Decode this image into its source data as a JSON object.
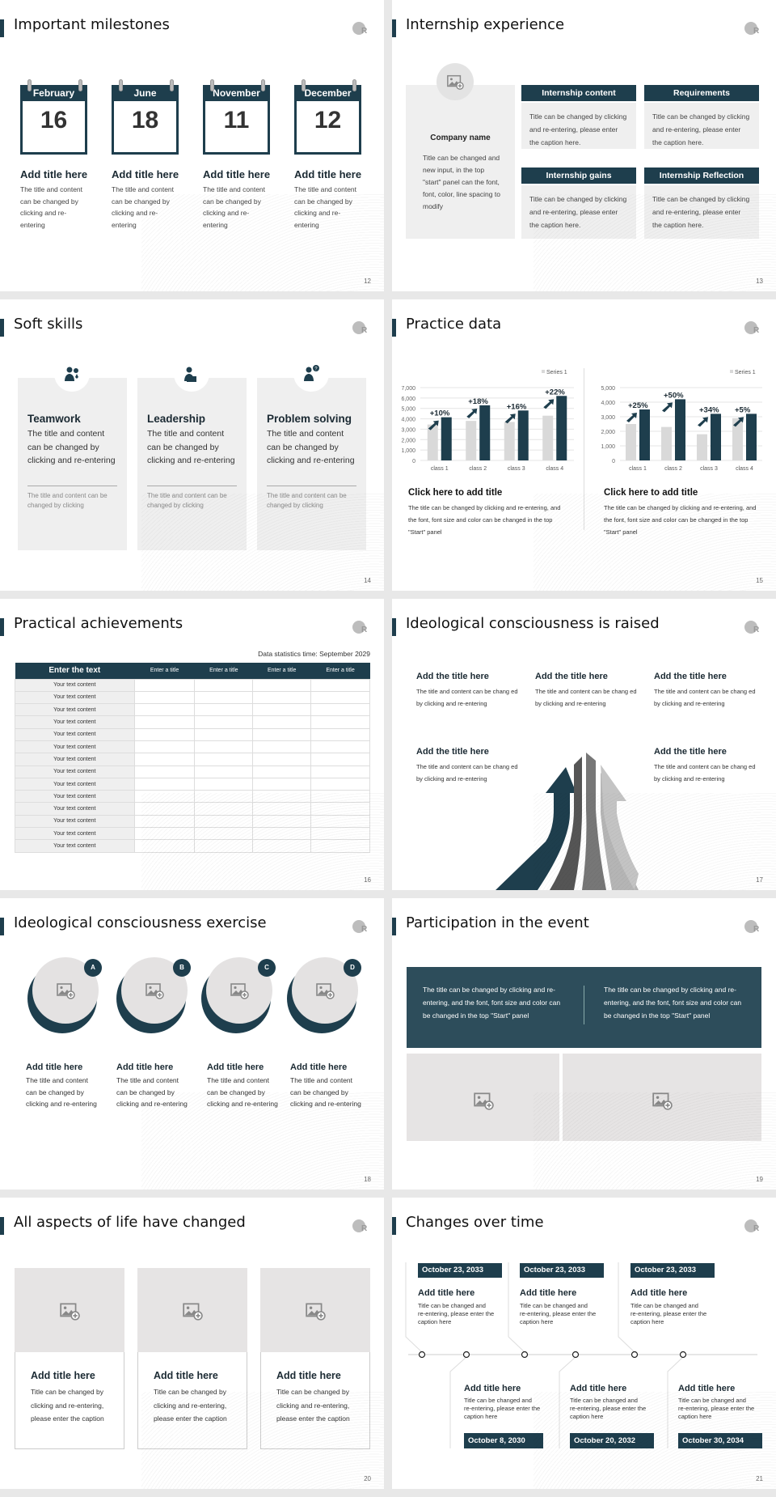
{
  "accent": "#1e3e4d",
  "slides": [
    {
      "title": "Important milestones",
      "page": "12",
      "calendars": [
        {
          "month": "February",
          "day": "16",
          "title": "Add title here",
          "body": "The title and content can be changed by clicking and re-entering"
        },
        {
          "month": "June",
          "day": "18",
          "title": "Add title here",
          "body": "The title and content can be changed by clicking and re-entering"
        },
        {
          "month": "November",
          "day": "11",
          "title": "Add title here",
          "body": "The title and content can be changed by clicking and re-entering"
        },
        {
          "month": "December",
          "day": "12",
          "title": "Add title here",
          "body": "The title and content can be changed by clicking and re-entering"
        }
      ]
    },
    {
      "title": "Internship experience",
      "page": "13",
      "company": {
        "name": "Company name",
        "body": "Title can be changed and new input, in the top \"start\" panel can the font, font, color, line spacing to modify"
      },
      "boxes": [
        {
          "header": "Internship content",
          "body": "Title can be changed by clicking and re-entering, please enter the caption here."
        },
        {
          "header": "Requirements",
          "body": "Title can be changed by clicking and re-entering, please enter the caption here."
        },
        {
          "header": "Internship gains",
          "body": "Title can be changed by clicking and re-entering, please enter the caption here."
        },
        {
          "header": "Internship Reflection",
          "body": "Title can be changed by clicking and re-entering, please enter the caption here."
        }
      ]
    },
    {
      "title": "Soft skills",
      "page": "14",
      "cards": [
        {
          "icon": "teamwork-icon",
          "title": "Teamwork",
          "body": "The title and content can be changed by clicking and re-entering",
          "note": "The title and content can be changed by clicking"
        },
        {
          "icon": "leadership-podium-icon",
          "title": "Leadership",
          "body": "The title and content can be changed by clicking and re-entering",
          "note": "The title and content can be changed by clicking"
        },
        {
          "icon": "question-person-icon",
          "title": "Problem solving",
          "body": "The title and content can be changed by clicking and re-entering",
          "note": "The title and content can be changed by clicking"
        }
      ]
    },
    {
      "title": "Practice data",
      "page": "15",
      "captions": [
        {
          "title": "Click here to add title",
          "body": "The title can be changed by clicking and re-entering, and the font, font size and color can be changed in the top \"Start\" panel"
        },
        {
          "title": "Click here to add title",
          "body": "The title can be changed by clicking and re-entering, and the font, font size and color can be changed in the top \"Start\" panel"
        }
      ]
    },
    {
      "title": "Practical achievements",
      "page": "16",
      "note": "Data statistics time: September 2029",
      "header": [
        "Enter the text",
        "Enter a title",
        "Enter a title",
        "Enter a title",
        "Enter a title"
      ],
      "rows": [
        "Your text content",
        "Your text content",
        "Your text content",
        "Your text content",
        "Your text content",
        "Your text content",
        "Your text content",
        "Your text content",
        "Your text content",
        "Your text content",
        "Your text content",
        "Your text content",
        "Your text content",
        "Your text content"
      ]
    },
    {
      "title": "Ideological consciousness is raised",
      "page": "17",
      "items": [
        {
          "title": "Add the title here",
          "body": "The title and content can be chang ed by clicking and re-entering"
        },
        {
          "title": "Add the title here",
          "body": "The title and content can be chang ed by clicking and re-entering"
        },
        {
          "title": "Add the title here",
          "body": "The title and content can be chang ed by clicking and re-entering"
        },
        {
          "title": "Add the title here",
          "body": "The title and content can be chang ed by clicking and re-entering"
        },
        {
          "title": "Add the title here",
          "body": "The title and content can be chang ed by clicking and re-entering"
        }
      ]
    },
    {
      "title": "Ideological consciousness exercise",
      "page": "18",
      "items": [
        {
          "badge": "A",
          "title": "Add title here",
          "body": "The title and content can be changed by clicking and re-entering"
        },
        {
          "badge": "B",
          "title": "Add title here",
          "body": "The title and content can be changed by clicking and re-entering"
        },
        {
          "badge": "C",
          "title": "Add title here",
          "body": "The title and content can be changed by clicking and re-entering"
        },
        {
          "badge": "D",
          "title": "Add title here",
          "body": "The title and content can be changed by clicking and re-entering"
        }
      ]
    },
    {
      "title": "Participation in the event",
      "page": "19",
      "texts": [
        "The title can be changed by clicking and re-entering, and the font, font size and color can be changed in the top \"Start\" panel",
        "The title can be changed by clicking and re-entering, and the font, font size and color can be changed in the top \"Start\" panel"
      ]
    },
    {
      "title": "All aspects of life have changed",
      "page": "20",
      "cards": [
        {
          "title": "Add title here",
          "body": "Title can be changed by clicking and re-entering, please enter the caption"
        },
        {
          "title": "Add title here",
          "body": "Title can be changed by clicking and re-entering, please enter the caption"
        },
        {
          "title": "Add title here",
          "body": "Title can be changed by clicking and re-entering, please enter the caption"
        }
      ]
    },
    {
      "title": "Changes over time",
      "page": "21",
      "top": [
        {
          "date": "October 23, 2033",
          "title": "Add title here",
          "body": "Title can be changed and re-entering, please enter the caption here"
        },
        {
          "date": "October 23, 2033",
          "title": "Add title here",
          "body": "Title can be changed and re-entering, please enter the caption here"
        },
        {
          "date": "October 23, 2033",
          "title": "Add title here",
          "body": "Title can be changed and re-entering, please enter the caption here"
        }
      ],
      "bottom": [
        {
          "date": "October 8, 2030",
          "title": "Add title here",
          "body": "Title can be changed and re-entering, please enter the caption here"
        },
        {
          "date": "October 20, 2032",
          "title": "Add title here",
          "body": "Title can be changed and re-entering, please enter the caption here"
        },
        {
          "date": "October 30, 2034",
          "title": "Add title here",
          "body": "Title can be changed and re-entering, please enter the caption here"
        }
      ]
    }
  ],
  "chart_data": [
    {
      "type": "bar",
      "categories": [
        "class 1",
        "class 2",
        "class 3",
        "class 4"
      ],
      "series": [
        {
          "name": "Series 1",
          "values": [
            3450,
            3800,
            3700,
            4300
          ],
          "color": "#d9d9d9"
        },
        {
          "values": [
            4150,
            5300,
            4800,
            6200
          ],
          "color": "#1e3e4d"
        }
      ],
      "annotations": [
        "+10%",
        "+18%",
        "+16%",
        "+22%"
      ],
      "ylim": [
        0,
        7000
      ],
      "yticks": [
        "0",
        "1,000",
        "2,000",
        "3,000",
        "4,000",
        "5,000",
        "6,000",
        "7,000"
      ],
      "grid": true,
      "legend": "top-right"
    },
    {
      "type": "bar",
      "categories": [
        "class 1",
        "class 2",
        "class 3",
        "class 4"
      ],
      "series": [
        {
          "name": "Series 1",
          "values": [
            2500,
            2300,
            1800,
            2900
          ],
          "color": "#d9d9d9"
        },
        {
          "values": [
            3500,
            4200,
            3200,
            3200
          ],
          "color": "#1e3e4d"
        }
      ],
      "annotations": [
        "+25%",
        "+50%",
        "+34%",
        "+5%"
      ],
      "ylim": [
        0,
        5000
      ],
      "yticks": [
        "0",
        "1,000",
        "2,000",
        "3,000",
        "4,000",
        "5,000"
      ],
      "grid": true,
      "legend": "top-right"
    }
  ]
}
